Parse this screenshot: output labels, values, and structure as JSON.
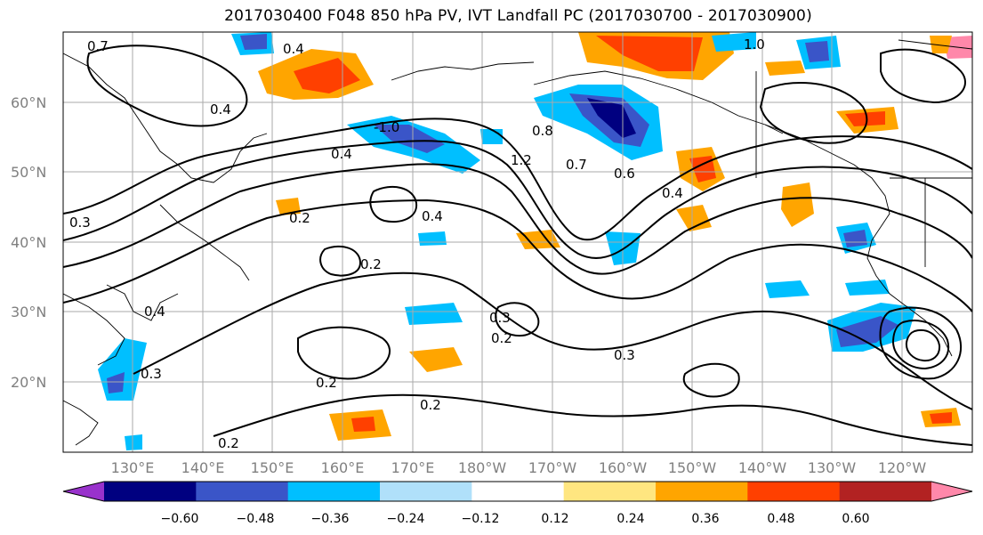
{
  "title": "2017030400 F048 850 hPa PV, IVT Landfall PC (2017030700 - 2017030900)",
  "axes": {
    "lat_labels": [
      "60°N",
      "50°N",
      "40°N",
      "30°N",
      "20°N"
    ],
    "lon_labels": [
      "130°E",
      "140°E",
      "150°E",
      "160°E",
      "170°E",
      "180°W",
      "170°W",
      "160°W",
      "150°W",
      "140°W",
      "130°W",
      "120°W"
    ]
  },
  "colorbar": {
    "labels": [
      "−0.60",
      "−0.48",
      "−0.36",
      "−0.24",
      "−0.12",
      "0.12",
      "0.24",
      "0.36",
      "0.48",
      "0.60"
    ],
    "colors": [
      "#9932cc",
      "#000080",
      "#3a55c8",
      "#00bfff",
      "#b0e0fa",
      "#ffffff",
      "#ffe680",
      "#ffa500",
      "#ff4000",
      "#b22222",
      "#ff88aa"
    ]
  },
  "contour_labels": [
    "0.7",
    "0.4",
    "-1.0",
    "0.4",
    "0.4",
    "0.2",
    "0.2",
    "0.3",
    "0.2",
    "0.2",
    "0.3",
    "0.2",
    "0.2",
    "0.3",
    "0.3",
    "0.4",
    "1.0",
    "0.8",
    "0.7",
    "0.6",
    "0.4",
    "1.2",
    "0.4"
  ]
}
